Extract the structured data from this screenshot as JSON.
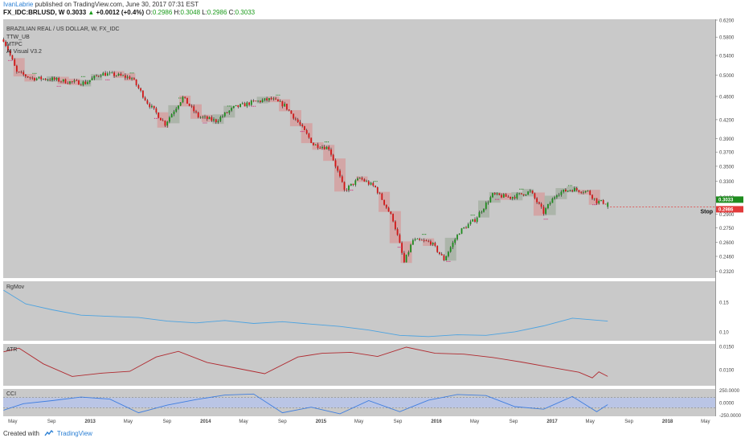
{
  "header": {
    "author": "IvanLabrie",
    "published": "published on TradingView.com, June 30, 2017 07:31 EST",
    "symbol": "FX_IDC:BRLUSD, W",
    "last": "0.3033",
    "change": "+0.0012 (+0.4%)",
    "open_label": "O:",
    "open": "0.2986",
    "high_label": "H:",
    "high": "0.3048",
    "low_label": "L:",
    "low": "0.2986",
    "close_label": "C:",
    "close": "0.3033"
  },
  "main_pane": {
    "title": "BRAZILIAN REAL / US DOLLAR, W, FX_IDC",
    "indicators": [
      "TTW_UB",
      "MTPC",
      "AI Visual V3.2"
    ],
    "price_ticks": [
      "0.6200",
      "0.5800",
      "0.5400",
      "0.5000",
      "0.4600",
      "0.4200",
      "0.3900",
      "0.3700",
      "0.3500",
      "0.3300",
      "0.3100",
      "0.2900",
      "0.2750",
      "0.2600",
      "0.2460",
      "0.2320"
    ],
    "last_price_tag": "0.3033",
    "stop_price_tag": "0.2986",
    "stop_label": "Stop"
  },
  "indicator_panes": [
    {
      "name": "RgMov",
      "ticks": [
        "0.15",
        "0.10"
      ]
    },
    {
      "name": "ATR",
      "ticks": [
        "0.0150",
        "0.0100"
      ]
    },
    {
      "name": "CCI",
      "ticks": [
        "250.0000",
        "0.0000",
        "-250.0000"
      ]
    }
  ],
  "time_axis": [
    "May",
    "Sep",
    "2013",
    "May",
    "Sep",
    "2014",
    "May",
    "Sep",
    "2015",
    "May",
    "Sep",
    "2016",
    "May",
    "Sep",
    "2017",
    "May",
    "Sep",
    "2018",
    "May"
  ],
  "footer": {
    "created_with": "Created with",
    "brand": "TradingView"
  },
  "colors": {
    "background": "#c9c9c9",
    "up_candle": "#1e8c1e",
    "down_candle": "#d01818",
    "zone_up": "#a9b3a6",
    "zone_down": "#d4a2a2",
    "rgmov_line": "#4da3e0",
    "atr_line": "#b02a30",
    "cci_line": "#3f7ee0",
    "cci_band": "#b8c4e8",
    "stop_line": "#e23a3a"
  },
  "chart_data": [
    {
      "type": "candlestick",
      "title": "BRAZILIAN REAL / US DOLLAR, W, FX_IDC",
      "timeframe": "W",
      "price_axis_range": [
        0.226,
        0.622
      ],
      "x_range": [
        "2012-04",
        "2018-06"
      ],
      "close_anchors": [
        {
          "x": "2012-04-02",
          "y": 0.575
        },
        {
          "x": "2012-05-14",
          "y": 0.505
        },
        {
          "x": "2012-07-02",
          "y": 0.494
        },
        {
          "x": "2012-09-03",
          "y": 0.492
        },
        {
          "x": "2012-10-22",
          "y": 0.487
        },
        {
          "x": "2012-12-17",
          "y": 0.485
        },
        {
          "x": "2013-02-04",
          "y": 0.503
        },
        {
          "x": "2013-03-25",
          "y": 0.5
        },
        {
          "x": "2013-05-13",
          "y": 0.494
        },
        {
          "x": "2013-07-01",
          "y": 0.449
        },
        {
          "x": "2013-08-26",
          "y": 0.413
        },
        {
          "x": "2013-10-21",
          "y": 0.458
        },
        {
          "x": "2013-12-09",
          "y": 0.425
        },
        {
          "x": "2014-02-03",
          "y": 0.418
        },
        {
          "x": "2014-03-31",
          "y": 0.44
        },
        {
          "x": "2014-06-02",
          "y": 0.45
        },
        {
          "x": "2014-07-28",
          "y": 0.455
        },
        {
          "x": "2014-09-08",
          "y": 0.444
        },
        {
          "x": "2014-10-20",
          "y": 0.416
        },
        {
          "x": "2014-12-08",
          "y": 0.381
        },
        {
          "x": "2015-01-26",
          "y": 0.376
        },
        {
          "x": "2015-03-16",
          "y": 0.318
        },
        {
          "x": "2015-05-04",
          "y": 0.334
        },
        {
          "x": "2015-06-22",
          "y": 0.322
        },
        {
          "x": "2015-08-17",
          "y": 0.284
        },
        {
          "x": "2015-09-21",
          "y": 0.24
        },
        {
          "x": "2015-10-19",
          "y": 0.262
        },
        {
          "x": "2015-12-14",
          "y": 0.26
        },
        {
          "x": "2016-01-25",
          "y": 0.243
        },
        {
          "x": "2016-03-14",
          "y": 0.271
        },
        {
          "x": "2016-05-02",
          "y": 0.284
        },
        {
          "x": "2016-06-27",
          "y": 0.313
        },
        {
          "x": "2016-08-22",
          "y": 0.31
        },
        {
          "x": "2016-10-24",
          "y": 0.317
        },
        {
          "x": "2016-12-05",
          "y": 0.292
        },
        {
          "x": "2017-01-16",
          "y": 0.315
        },
        {
          "x": "2017-03-06",
          "y": 0.32
        },
        {
          "x": "2017-04-24",
          "y": 0.317
        },
        {
          "x": "2017-05-22",
          "y": 0.305
        },
        {
          "x": "2017-06-26",
          "y": 0.3033
        }
      ],
      "last_close": 0.3033,
      "stop": 0.2986
    },
    {
      "type": "line",
      "name": "RgMov",
      "y_range": [
        0.085,
        0.185
      ],
      "points": [
        {
          "x": "2012-04-02",
          "y": 0.17
        },
        {
          "x": "2012-06-11",
          "y": 0.147
        },
        {
          "x": "2012-09-03",
          "y": 0.137
        },
        {
          "x": "2012-12-03",
          "y": 0.128
        },
        {
          "x": "2013-03-04",
          "y": 0.126
        },
        {
          "x": "2013-06-03",
          "y": 0.124
        },
        {
          "x": "2013-09-02",
          "y": 0.118
        },
        {
          "x": "2013-12-02",
          "y": 0.115
        },
        {
          "x": "2014-03-03",
          "y": 0.119
        },
        {
          "x": "2014-06-02",
          "y": 0.114
        },
        {
          "x": "2014-09-01",
          "y": 0.117
        },
        {
          "x": "2014-12-01",
          "y": 0.113
        },
        {
          "x": "2015-03-02",
          "y": 0.109
        },
        {
          "x": "2015-06-01",
          "y": 0.103
        },
        {
          "x": "2015-09-07",
          "y": 0.094
        },
        {
          "x": "2015-12-07",
          "y": 0.092
        },
        {
          "x": "2016-03-07",
          "y": 0.095
        },
        {
          "x": "2016-06-06",
          "y": 0.094
        },
        {
          "x": "2016-09-05",
          "y": 0.1
        },
        {
          "x": "2016-12-05",
          "y": 0.11
        },
        {
          "x": "2017-03-06",
          "y": 0.123
        },
        {
          "x": "2017-06-26",
          "y": 0.118
        }
      ]
    },
    {
      "type": "line",
      "name": "ATR",
      "y_range": [
        0.0065,
        0.0155
      ],
      "points": [
        {
          "x": "2012-04-02",
          "y": 0.0138
        },
        {
          "x": "2012-05-21",
          "y": 0.0146
        },
        {
          "x": "2012-08-06",
          "y": 0.0112
        },
        {
          "x": "2012-11-05",
          "y": 0.0085
        },
        {
          "x": "2013-02-04",
          "y": 0.0092
        },
        {
          "x": "2013-05-06",
          "y": 0.0096
        },
        {
          "x": "2013-07-29",
          "y": 0.0127
        },
        {
          "x": "2013-10-07",
          "y": 0.0139
        },
        {
          "x": "2014-01-06",
          "y": 0.0115
        },
        {
          "x": "2014-04-07",
          "y": 0.0103
        },
        {
          "x": "2014-07-07",
          "y": 0.0091
        },
        {
          "x": "2014-10-20",
          "y": 0.0127
        },
        {
          "x": "2015-01-05",
          "y": 0.0135
        },
        {
          "x": "2015-04-06",
          "y": 0.0137
        },
        {
          "x": "2015-06-29",
          "y": 0.0128
        },
        {
          "x": "2015-09-28",
          "y": 0.0148
        },
        {
          "x": "2015-12-28",
          "y": 0.0135
        },
        {
          "x": "2016-03-28",
          "y": 0.0133
        },
        {
          "x": "2016-06-27",
          "y": 0.0126
        },
        {
          "x": "2016-09-26",
          "y": 0.0116
        },
        {
          "x": "2016-12-26",
          "y": 0.0105
        },
        {
          "x": "2017-03-27",
          "y": 0.0094
        },
        {
          "x": "2017-05-08",
          "y": 0.0082
        },
        {
          "x": "2017-05-29",
          "y": 0.0095
        },
        {
          "x": "2017-06-26",
          "y": 0.0085
        }
      ]
    },
    {
      "type": "line",
      "name": "CCI",
      "y_range": [
        -270,
        270
      ],
      "bands": [
        100,
        -100
      ],
      "points": [
        {
          "x": "2012-04-02",
          "y": -150
        },
        {
          "x": "2012-06-04",
          "y": -20
        },
        {
          "x": "2012-09-03",
          "y": 40
        },
        {
          "x": "2012-12-03",
          "y": 110
        },
        {
          "x": "2013-03-04",
          "y": 70
        },
        {
          "x": "2013-06-03",
          "y": -200
        },
        {
          "x": "2013-09-02",
          "y": -50
        },
        {
          "x": "2013-12-02",
          "y": 60
        },
        {
          "x": "2014-03-03",
          "y": 150
        },
        {
          "x": "2014-06-02",
          "y": 170
        },
        {
          "x": "2014-09-01",
          "y": -200
        },
        {
          "x": "2014-12-01",
          "y": -90
        },
        {
          "x": "2015-03-02",
          "y": -220
        },
        {
          "x": "2015-06-01",
          "y": 40
        },
        {
          "x": "2015-09-07",
          "y": -180
        },
        {
          "x": "2015-12-07",
          "y": 50
        },
        {
          "x": "2016-03-07",
          "y": 160
        },
        {
          "x": "2016-06-06",
          "y": 140
        },
        {
          "x": "2016-09-05",
          "y": -80
        },
        {
          "x": "2016-12-05",
          "y": -130
        },
        {
          "x": "2017-03-06",
          "y": 120
        },
        {
          "x": "2017-05-22",
          "y": -180
        },
        {
          "x": "2017-06-26",
          "y": -40
        }
      ]
    }
  ]
}
